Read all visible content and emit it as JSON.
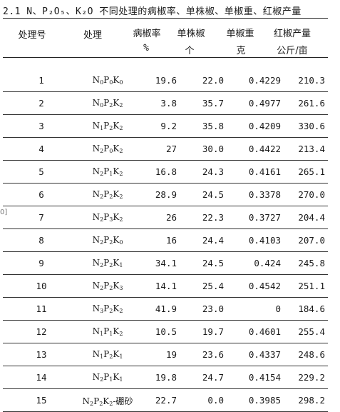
{
  "title": "2.1 N、P₂O₅、K₂O 不同处理的病椒率、单株椒、单椒重、红椒产量",
  "headers": {
    "no": "处理号",
    "treatment": "处理",
    "rate": "病椒率",
    "rate_unit": "%",
    "count": "单株椒",
    "count_unit": "个",
    "weight": "单椒重",
    "weight_unit": "克",
    "yield": "红椒产量",
    "yield_unit": "公斤/亩"
  },
  "edge_mark": "0]",
  "rows": [
    {
      "no": "1",
      "treatment": "N0P0K0",
      "rate": "19.6",
      "count": "22.0",
      "weight": "0.4229",
      "yield": "210.3"
    },
    {
      "no": "2",
      "treatment": "N0P2K2",
      "rate": "3.8",
      "count": "35.7",
      "weight": "0.4977",
      "yield": "261.6"
    },
    {
      "no": "3",
      "treatment": "N1P2K2",
      "rate": "9.2",
      "count": "35.8",
      "weight": "0.4209",
      "yield": "330.6"
    },
    {
      "no": "4",
      "treatment": "N2P0K2",
      "rate": "27",
      "count": "30.0",
      "weight": "0.4422",
      "yield": "213.4"
    },
    {
      "no": "5",
      "treatment": "N2P1K2",
      "rate": "16.8",
      "count": "24.3",
      "weight": "0.4161",
      "yield": "265.1"
    },
    {
      "no": "6",
      "treatment": "N2P2K2",
      "rate": "28.9",
      "count": "24.5",
      "weight": "0.3378",
      "yield": "270.0"
    },
    {
      "no": "7",
      "treatment": "N2P3K2",
      "rate": "26",
      "count": "22.3",
      "weight": "0.3727",
      "yield": "204.4"
    },
    {
      "no": "8",
      "treatment": "N2P2K0",
      "rate": "16",
      "count": "24.4",
      "weight": "0.4103",
      "yield": "207.0"
    },
    {
      "no": "9",
      "treatment": "N2P2K1",
      "rate": "34.1",
      "count": "24.5",
      "weight": "0.424",
      "yield": "245.8"
    },
    {
      "no": "10",
      "treatment": "N2P2K3",
      "rate": "14.1",
      "count": "25.4",
      "weight": "0.4542",
      "yield": "251.1"
    },
    {
      "no": "11",
      "treatment": "N3P2K2",
      "rate": "41.9",
      "count": "23.0",
      "weight": "0",
      "yield": "184.6"
    },
    {
      "no": "12",
      "treatment": "N1P1K2",
      "rate": "10.5",
      "count": "19.7",
      "weight": "0.4601",
      "yield": "255.4"
    },
    {
      "no": "13",
      "treatment": "N1P2K1",
      "rate": "19",
      "count": "23.6",
      "weight": "0.4337",
      "yield": "248.6"
    },
    {
      "no": "14",
      "treatment": "N2P1K1",
      "rate": "19.8",
      "count": "24.7",
      "weight": "0.4154",
      "yield": "229.2"
    },
    {
      "no": "15",
      "treatment": "N2P2K2-硼砂",
      "rate": "22.7",
      "count": "0.0",
      "weight": "0.3985",
      "yield": "298.2"
    }
  ]
}
